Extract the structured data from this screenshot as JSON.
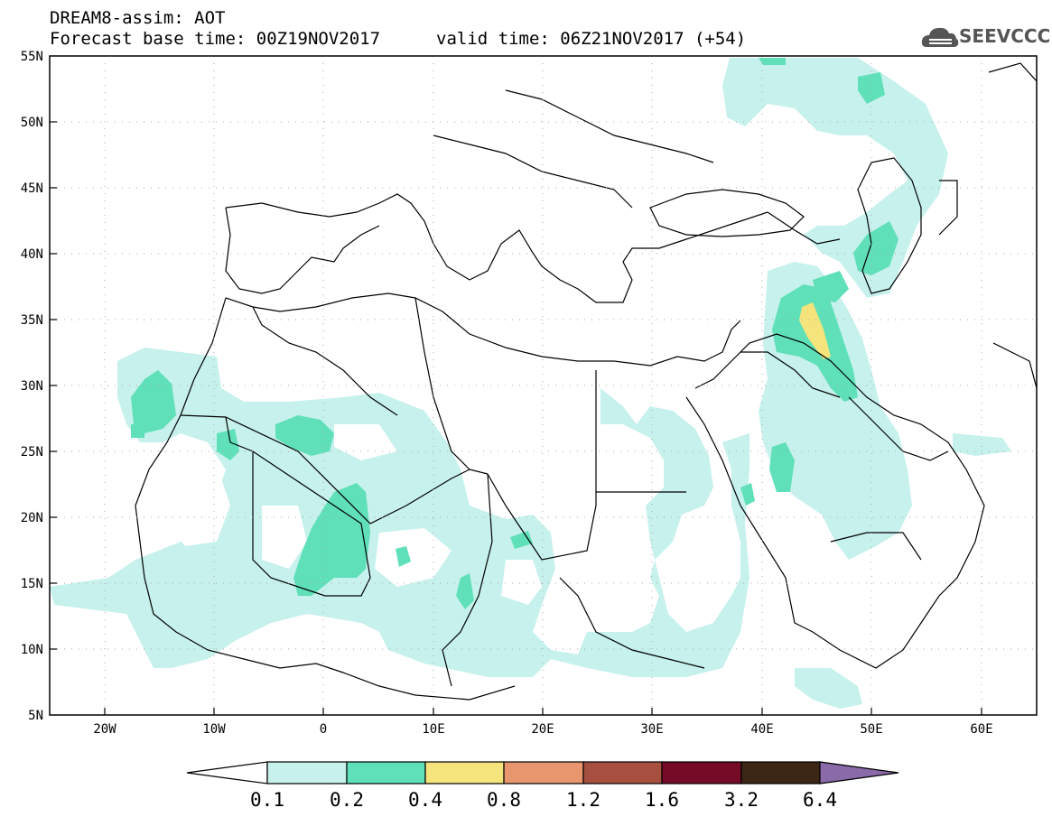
{
  "header": {
    "title": "DREAM8-assim: AOT",
    "base_time": "Forecast base time: 00Z19NOV2017",
    "valid_time": "valid time: 06Z21NOV2017 (+54)"
  },
  "logo": {
    "text": "SEEVCCC",
    "icon": "cloud-icon"
  },
  "map": {
    "lat_labels": [
      "55N",
      "50N",
      "45N",
      "40N",
      "35N",
      "30N",
      "25N",
      "20N",
      "15N",
      "10N",
      "5N"
    ],
    "lon_labels": [
      "20W",
      "10W",
      "0",
      "10E",
      "20E",
      "30E",
      "40E",
      "50E",
      "60E"
    ],
    "extent": {
      "lon": [
        -25,
        65
      ],
      "lat": [
        5,
        55
      ]
    },
    "grid": "dotted"
  },
  "colorbar": {
    "labels": [
      "0.1",
      "0.2",
      "0.4",
      "0.8",
      "1.2",
      "1.6",
      "3.2",
      "6.4"
    ],
    "colors": [
      "#ffffff",
      "#c6f1ec",
      "#5fe0b8",
      "#f5e47b",
      "#e8966e",
      "#a8503f",
      "#750a26",
      "#3c2616",
      "#8a6aa8"
    ]
  }
}
